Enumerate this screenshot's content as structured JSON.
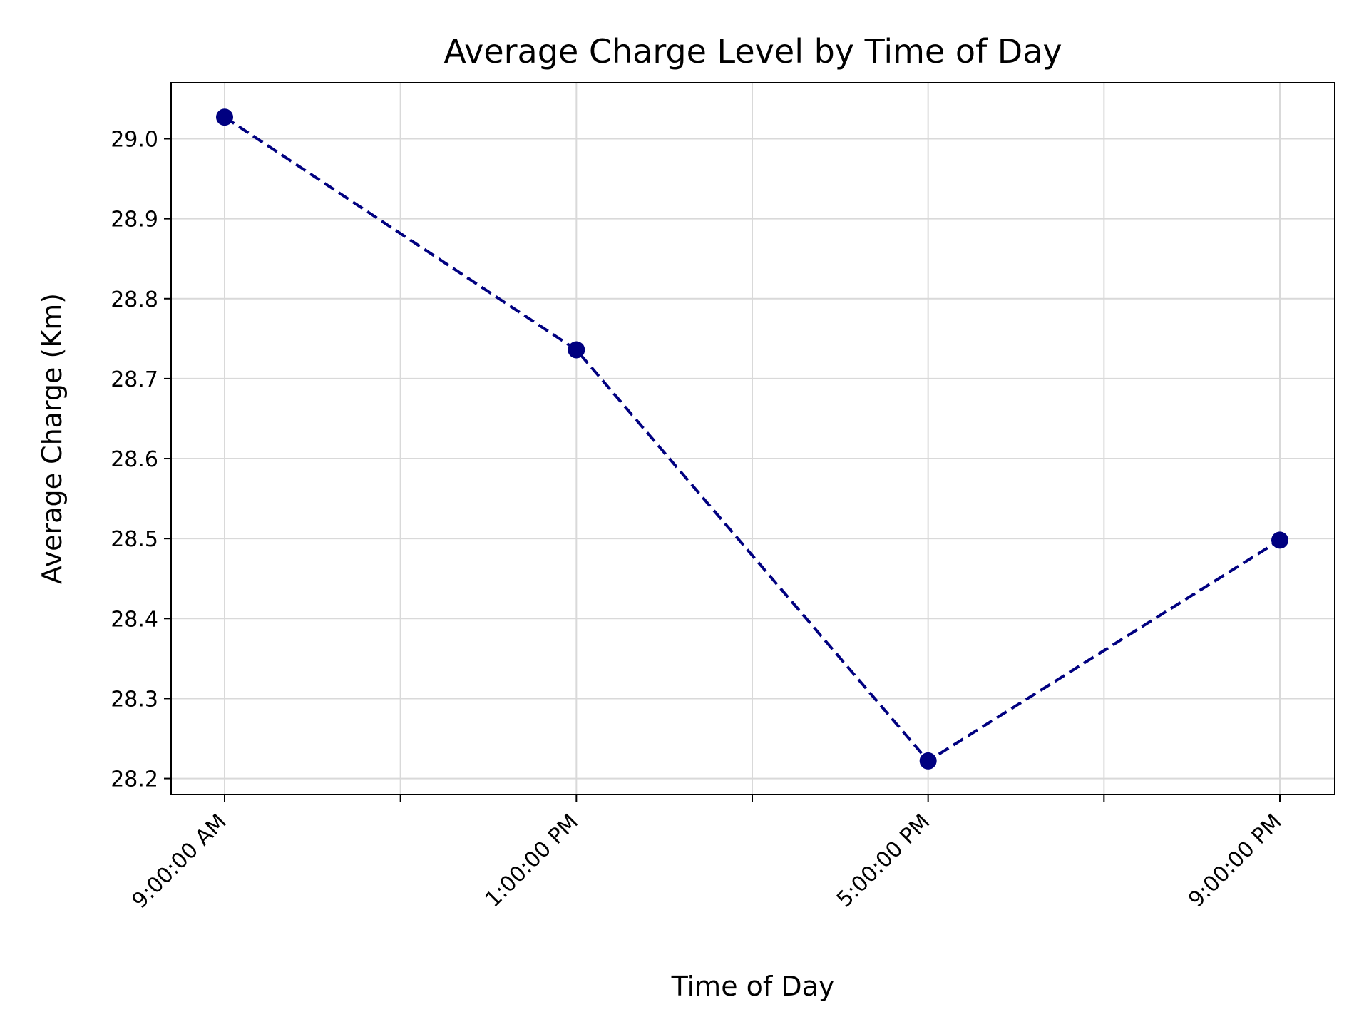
{
  "chart_data": {
    "type": "line",
    "title": "Average Charge Level by Time of Day",
    "xlabel": "Time of Day",
    "ylabel": "Average Charge (Km)",
    "categories": [
      "9:00:00 AM",
      "1:00:00 PM",
      "5:00:00 PM",
      "9:00:00 PM"
    ],
    "series": [
      {
        "values": [
          29.027,
          28.736,
          28.222,
          28.498
        ]
      }
    ],
    "ylim": [
      28.18,
      29.07
    ],
    "yticks": [
      "28.2",
      "28.3",
      "28.4",
      "28.5",
      "28.6",
      "28.7",
      "28.8",
      "28.9",
      "29.0"
    ],
    "grid": true,
    "line_style": "dashed",
    "marker": "circle",
    "colors": {
      "series": "#000080",
      "grid": "#d9d9d9",
      "axes": "#000000"
    }
  }
}
